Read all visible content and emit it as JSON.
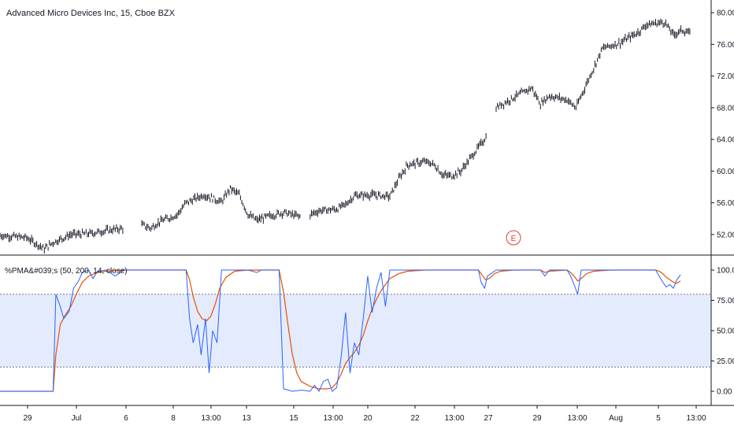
{
  "header": {
    "title": "Advanced Micro Devices Inc, 15, Cboe BZX"
  },
  "indicator": {
    "label": "%PMA&#039;s (50, 200, 14, close)"
  },
  "earnings_marker": {
    "label": "E",
    "x_label_anchor": "29"
  },
  "colors": {
    "background": "#ffffff",
    "candle": "#131722",
    "fast_line": "#2962ff",
    "slow_line": "#e65100",
    "band_fill": "#e3ebfd",
    "band_line": "#787b86",
    "separator": "#131722",
    "earnings": "#e53935",
    "tick_text": "#131722"
  },
  "chart_data": [
    {
      "type": "line",
      "subtype": "ohlc-bars",
      "title": "Advanced Micro Devices Inc, 15, Cboe BZX",
      "y_ticks": [
        "52.00",
        "56.00",
        "60.00",
        "64.00",
        "68.00",
        "72.00",
        "76.00",
        "80.00"
      ],
      "ylim": [
        50,
        81
      ],
      "x_ticks": [
        "29",
        "Jul",
        "6",
        "8",
        "13:00",
        "13",
        "15",
        "13:00",
        "20",
        "22",
        "13:00",
        "27",
        "29",
        "13:00",
        "Aug",
        "5",
        "13:00"
      ],
      "series": [
        {
          "name": "",
          "points": [
            [
              0,
              51.9
            ],
            [
              3,
              51.6
            ],
            [
              5,
              50.2
            ],
            [
              6,
              51.0
            ],
            [
              8,
              52.0
            ],
            [
              10,
              52.1
            ],
            [
              12,
              52.5
            ],
            [
              14,
              52.8
            ],
            [
              16,
              53.2
            ],
            [
              17,
              52.8
            ],
            [
              18,
              53.6
            ],
            [
              20,
              54.5
            ],
            [
              21,
              56.0
            ],
            [
              23,
              57.0
            ],
            [
              25,
              56.1
            ],
            [
              26,
              57.8
            ],
            [
              27,
              57.0
            ],
            [
              28,
              54.5
            ],
            [
              29,
              53.8
            ],
            [
              30,
              54.2
            ],
            [
              32,
              54.8
            ],
            [
              34,
              54.2
            ],
            [
              35,
              54.5
            ],
            [
              36,
              55.0
            ],
            [
              38,
              55.2
            ],
            [
              39,
              55.8
            ],
            [
              40,
              56.9
            ],
            [
              42,
              57.0
            ],
            [
              44,
              56.8
            ],
            [
              45,
              59.0
            ],
            [
              46,
              60.8
            ],
            [
              48,
              61.2
            ],
            [
              49,
              60.8
            ],
            [
              50,
              59.5
            ],
            [
              51,
              59.4
            ],
            [
              52,
              60.0
            ],
            [
              55,
              64.5
            ],
            [
              56,
              68.0
            ],
            [
              58,
              69.3
            ],
            [
              60,
              70.5
            ],
            [
              61,
              68.5
            ],
            [
              62,
              69.5
            ],
            [
              64,
              69.0
            ],
            [
              65,
              68.0
            ],
            [
              68,
              75.5
            ],
            [
              70,
              76.2
            ],
            [
              72,
              77.5
            ],
            [
              73,
              78.5
            ],
            [
              75,
              78.8
            ],
            [
              76,
              77.2
            ],
            [
              77,
              77.8
            ],
            [
              78,
              77.3
            ],
            [
              79,
              77.6
            ]
          ]
        }
      ],
      "gaps_after_index": [
        7,
        21,
        36,
        51,
        52
      ]
    },
    {
      "type": "line",
      "title": "%PMA&#039;s (50, 200, 14, close)",
      "y_ticks": [
        "0.00",
        "25.00",
        "50.00",
        "75.00",
        "100.00"
      ],
      "ylim": [
        -10,
        110
      ],
      "band": {
        "upper": 80,
        "lower": 20
      },
      "series": [
        {
          "name": "",
          "role": "fast",
          "points": [
            [
              0,
              0
            ],
            [
              5,
              0
            ],
            [
              6,
              0
            ],
            [
              6.3,
              80
            ],
            [
              6.8,
              70
            ],
            [
              7.2,
              60
            ],
            [
              7.8,
              66
            ],
            [
              8.3,
              85
            ],
            [
              8.8,
              90
            ],
            [
              9.3,
              98
            ],
            [
              10,
              100
            ],
            [
              10.5,
              93
            ],
            [
              11,
              99
            ],
            [
              12,
              100
            ],
            [
              13,
              95
            ],
            [
              14,
              100
            ],
            [
              15,
              100
            ],
            [
              16,
              100
            ],
            [
              17,
              100
            ],
            [
              18,
              100
            ],
            [
              20,
              100
            ],
            [
              21,
              100
            ],
            [
              21.4,
              60
            ],
            [
              21.8,
              40
            ],
            [
              22.3,
              55
            ],
            [
              22.7,
              30
            ],
            [
              23.2,
              60
            ],
            [
              23.6,
              15
            ],
            [
              24,
              50
            ],
            [
              24.5,
              40
            ],
            [
              25,
              100
            ],
            [
              27,
              100
            ],
            [
              28,
              100
            ],
            [
              29,
              98
            ],
            [
              29.5,
              100
            ],
            [
              30,
              100
            ],
            [
              31,
              100
            ],
            [
              31.5,
              100
            ],
            [
              32,
              2
            ],
            [
              33,
              0
            ],
            [
              34,
              1
            ],
            [
              35,
              0
            ],
            [
              35.5,
              5
            ],
            [
              36,
              0
            ],
            [
              36.5,
              8
            ],
            [
              37,
              10
            ],
            [
              37.5,
              0
            ],
            [
              38,
              3
            ],
            [
              38.5,
              28
            ],
            [
              39,
              65
            ],
            [
              39.5,
              15
            ],
            [
              40,
              40
            ],
            [
              40.5,
              30
            ],
            [
              41,
              60
            ],
            [
              41.5,
              95
            ],
            [
              42,
              65
            ],
            [
              42.5,
              85
            ],
            [
              43,
              98
            ],
            [
              43.5,
              70
            ],
            [
              44,
              100
            ],
            [
              45,
              100
            ],
            [
              46,
              100
            ],
            [
              47,
              100
            ],
            [
              48,
              100
            ],
            [
              50,
              100
            ],
            [
              52,
              100
            ],
            [
              53,
              100
            ],
            [
              54,
              100
            ],
            [
              54.3,
              90
            ],
            [
              54.7,
              85
            ],
            [
              55,
              95
            ],
            [
              56,
              100
            ],
            [
              58,
              100
            ],
            [
              60,
              100
            ],
            [
              61,
              100
            ],
            [
              61.5,
              95
            ],
            [
              62,
              100
            ],
            [
              64,
              100
            ],
            [
              64.4,
              95
            ],
            [
              64.8,
              88
            ],
            [
              65.2,
              80
            ],
            [
              65.6,
              100
            ],
            [
              66,
              100
            ],
            [
              68,
              100
            ],
            [
              70,
              100
            ],
            [
              72,
              100
            ],
            [
              74,
              100
            ],
            [
              74.4,
              95
            ],
            [
              74.8,
              90
            ],
            [
              75.2,
              86
            ],
            [
              75.6,
              88
            ],
            [
              76,
              85
            ],
            [
              76.4,
              92
            ],
            [
              76.8,
              96
            ]
          ]
        },
        {
          "name": "",
          "role": "slow",
          "points": [
            [
              0,
              0
            ],
            [
              5,
              0
            ],
            [
              6,
              0
            ],
            [
              6.3,
              30
            ],
            [
              6.8,
              55
            ],
            [
              7.3,
              62
            ],
            [
              8,
              70
            ],
            [
              8.6,
              80
            ],
            [
              9.3,
              90
            ],
            [
              10,
              95
            ],
            [
              11,
              98
            ],
            [
              12,
              99
            ],
            [
              14,
              100
            ],
            [
              17,
              100
            ],
            [
              20,
              100
            ],
            [
              21,
              100
            ],
            [
              21.4,
              92
            ],
            [
              21.8,
              78
            ],
            [
              22.3,
              66
            ],
            [
              22.8,
              60
            ],
            [
              23.3,
              58
            ],
            [
              23.8,
              62
            ],
            [
              24.3,
              72
            ],
            [
              24.8,
              85
            ],
            [
              25.5,
              94
            ],
            [
              26.5,
              99
            ],
            [
              28,
              100
            ],
            [
              30,
              100
            ],
            [
              31.5,
              100
            ],
            [
              32,
              82
            ],
            [
              32.5,
              55
            ],
            [
              33,
              30
            ],
            [
              33.5,
              15
            ],
            [
              34,
              8
            ],
            [
              35,
              4
            ],
            [
              36,
              2
            ],
            [
              37,
              2
            ],
            [
              37.5,
              3
            ],
            [
              38,
              7
            ],
            [
              38.5,
              14
            ],
            [
              39,
              23
            ],
            [
              39.5,
              28
            ],
            [
              40,
              32
            ],
            [
              40.5,
              38
            ],
            [
              41,
              46
            ],
            [
              41.5,
              58
            ],
            [
              42,
              68
            ],
            [
              42.5,
              76
            ],
            [
              43,
              83
            ],
            [
              43.5,
              88
            ],
            [
              44,
              93
            ],
            [
              45,
              97
            ],
            [
              46,
              99
            ],
            [
              48,
              100
            ],
            [
              50,
              100
            ],
            [
              52,
              100
            ],
            [
              54,
              100
            ],
            [
              54.4,
              96
            ],
            [
              54.8,
              92
            ],
            [
              55.2,
              93
            ],
            [
              55.8,
              97
            ],
            [
              56.5,
              99
            ],
            [
              58,
              100
            ],
            [
              61,
              100
            ],
            [
              61.5,
              98
            ],
            [
              62,
              99
            ],
            [
              64,
              100
            ],
            [
              64.4,
              98
            ],
            [
              64.8,
              95
            ],
            [
              65.2,
              91
            ],
            [
              65.6,
              93
            ],
            [
              66.2,
              97
            ],
            [
              67,
              99
            ],
            [
              69,
              100
            ],
            [
              72,
              100
            ],
            [
              74,
              100
            ],
            [
              74.4,
              99
            ],
            [
              74.8,
              97
            ],
            [
              75.2,
              94
            ],
            [
              75.6,
              92
            ],
            [
              76,
              90
            ],
            [
              76.4,
              89
            ],
            [
              76.8,
              91
            ]
          ]
        }
      ]
    }
  ]
}
